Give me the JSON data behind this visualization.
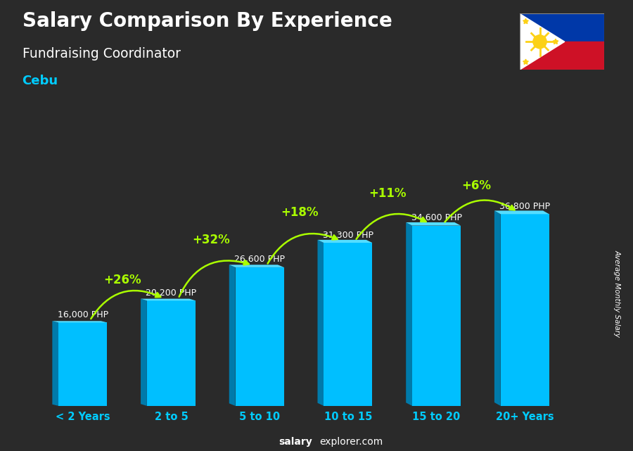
{
  "title": "Salary Comparison By Experience",
  "subtitle": "Fundraising Coordinator",
  "location": "Cebu",
  "categories": [
    "< 2 Years",
    "2 to 5",
    "5 to 10",
    "10 to 15",
    "15 to 20",
    "20+ Years"
  ],
  "values": [
    16000,
    20200,
    26600,
    31300,
    34600,
    36800
  ],
  "pct_changes": [
    null,
    "+26%",
    "+32%",
    "+18%",
    "+11%",
    "+6%"
  ],
  "salary_labels": [
    "16,000 PHP",
    "20,200 PHP",
    "26,600 PHP",
    "31,300 PHP",
    "34,600 PHP",
    "36,800 PHP"
  ],
  "bar_color_main": "#00BFFF",
  "bar_color_left": "#007AAA",
  "bar_color_top": "#55DDFF",
  "pct_color": "#AAFF00",
  "salary_label_color": "#FFFFFF",
  "title_color": "#FFFFFF",
  "subtitle_color": "#FFFFFF",
  "location_color": "#00CCFF",
  "bg_color": "#2a2a2a",
  "ylabel": "Average Monthly Salary",
  "watermark_bold": "salary",
  "watermark_normal": "explorer.com",
  "ylim_max": 45000,
  "bar_width": 0.55,
  "flag_blue": "#0038A8",
  "flag_red": "#CE1126",
  "flag_white": "#FFFFFF",
  "flag_yellow": "#FCD116"
}
